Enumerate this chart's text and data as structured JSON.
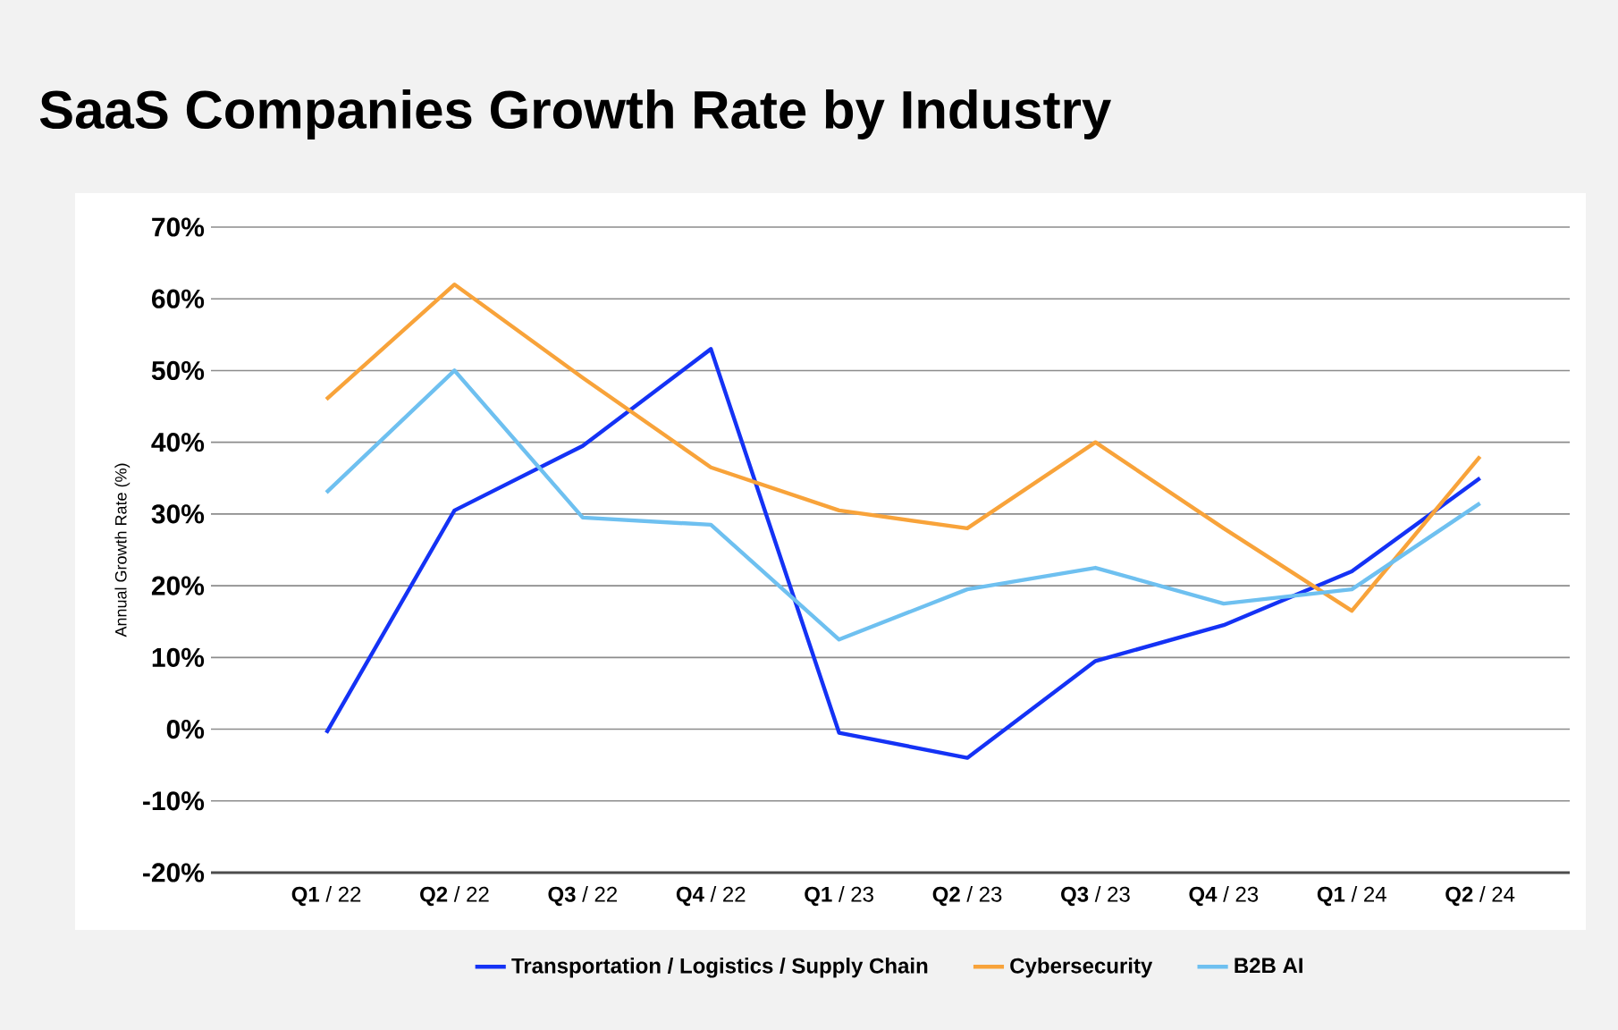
{
  "chart_data": {
    "type": "line",
    "title": "SaaS Companies Growth Rate by Industry",
    "ylabel": "Annual Growth Rate (%)",
    "categories": [
      "**Q1** / 22",
      "**Q2** / 22",
      "**Q3** / 22",
      "**Q4** / 22",
      "**Q1** / 23",
      "**Q2** / 23",
      "**Q3** / 23",
      "**Q4** / 23",
      "**Q1** / 24",
      "**Q2** / 24"
    ],
    "series": [
      {
        "name": "Transportation / Logistics / Supply Chain",
        "color": "#1432f5",
        "values": [
          -0.5,
          30.5,
          39.5,
          53,
          -0.5,
          -4,
          9.5,
          14.5,
          22,
          35
        ]
      },
      {
        "name": "Cybersecurity",
        "color": "#f8a33a",
        "values": [
          46,
          62,
          49,
          36.5,
          30.5,
          28,
          40,
          28,
          16.5,
          38
        ]
      },
      {
        "name": "B2B AI",
        "color": "#6ec0f0",
        "values": [
          33,
          50,
          29.5,
          28.5,
          12.5,
          19.5,
          22.5,
          17.5,
          19.5,
          31.5
        ]
      }
    ],
    "ylim": [
      -20,
      70
    ],
    "yticks": [
      {
        "value": -20,
        "label": "-20%"
      },
      {
        "value": -10,
        "label": "-10%"
      },
      {
        "value": 0,
        "label": "0%"
      },
      {
        "value": 10,
        "label": "10%"
      },
      {
        "value": 20,
        "label": "20%"
      },
      {
        "value": 30,
        "label": "30%"
      },
      {
        "value": 40,
        "label": "40%"
      },
      {
        "value": 50,
        "label": "50%"
      },
      {
        "value": 60,
        "label": "60%"
      },
      {
        "value": 70,
        "label": "70%"
      }
    ],
    "grid": "y",
    "legend": "bottom",
    "marker": "none",
    "line_style": "solid"
  }
}
